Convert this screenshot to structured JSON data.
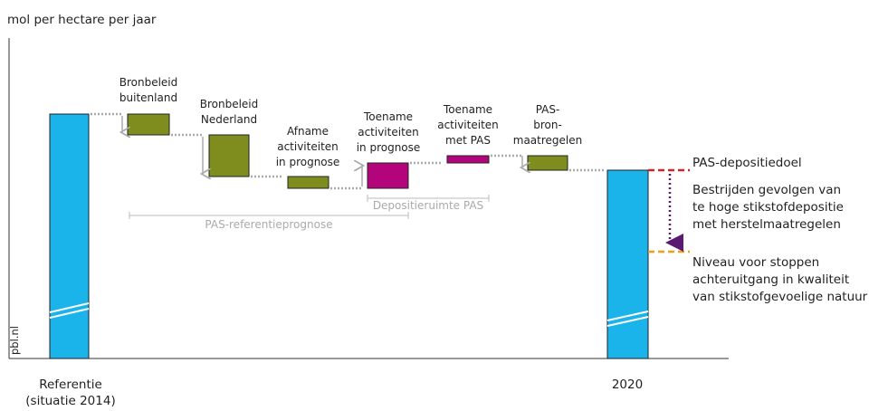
{
  "unit_label": "mol per hectare per jaar",
  "watermark": "pbl.nl",
  "steps": [
    {
      "lines": [
        "Bronbeleid",
        "buitenland"
      ]
    },
    {
      "lines": [
        "Bronbeleid",
        "Nederland"
      ]
    },
    {
      "lines": [
        "Afname",
        "activiteiten",
        "in prognose"
      ]
    },
    {
      "lines": [
        "Toename",
        "activiteiten",
        "in prognose"
      ]
    },
    {
      "lines": [
        "Toename",
        "activiteiten",
        "met PAS"
      ]
    },
    {
      "lines": [
        "PAS-",
        "bron-",
        "maatregelen"
      ]
    }
  ],
  "brackets": {
    "referentieprognose": "PAS-referentieprognose",
    "depositieruimte": "Depositieruimte PAS"
  },
  "annotations": {
    "doel": "PAS-depositiedoel",
    "herstel": [
      "Bestrijden gevolgen van",
      "te hoge stikstofdepositie",
      "met herstelmaatregelen"
    ],
    "niveau": [
      "Niveau voor stoppen",
      "achteruitgang in kwaliteit",
      "van stikstofgevoelige natuur"
    ]
  },
  "categories": {
    "referentie": [
      "Referentie",
      "(situatie 2014)"
    ],
    "end": "2020"
  }
}
